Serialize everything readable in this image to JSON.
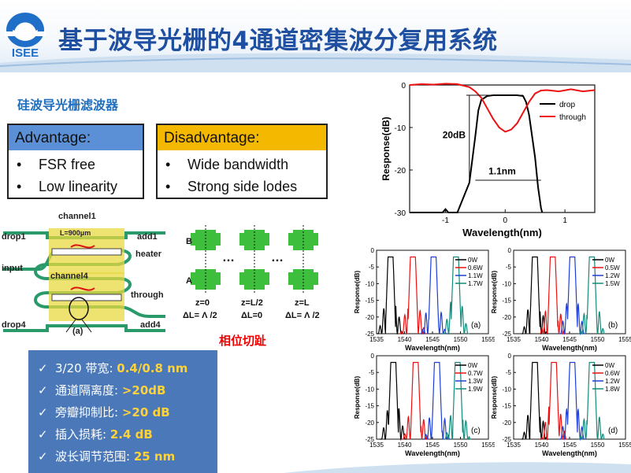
{
  "page": {
    "title": "基于波导光栅的4通道密集波分复用系统",
    "logo_text": "ISEE",
    "subtitle": "硅波导光栅滤波器"
  },
  "advantage": {
    "header": "Advantage:",
    "items": [
      "FSR free",
      "Low linearity"
    ]
  },
  "disadvantage": {
    "header": "Disadvantage:",
    "items": [
      "Wide bandwidth",
      "Strong side lodes"
    ]
  },
  "diagram": {
    "channel1": "channel1",
    "channel4": "channel4",
    "length": "L=900μm",
    "drop1": "drop1",
    "add1": "add1",
    "heater": "heater",
    "input": "input",
    "through": "through",
    "drop4": "drop4",
    "add4": "add4",
    "panel": "(a)"
  },
  "phase": {
    "a_label": "A",
    "b_label": "B",
    "dots1": "…",
    "dots2": "…",
    "z_labels": [
      "z=0",
      "z=L/2",
      "z=L"
    ],
    "dl_labels": [
      "ΔL= Λ /2",
      "ΔL=0",
      "ΔL= Λ /2"
    ],
    "caption": "相位切趾"
  },
  "summary": {
    "check": "✓",
    "rows": [
      {
        "label": "3/20 带宽: ",
        "value": "0.4/0.8 nm"
      },
      {
        "label": "通道隔离度: ",
        "value": ">20dB"
      },
      {
        "label": "旁瓣抑制比: ",
        "value": ">20 dB"
      },
      {
        "label": "插入损耗: ",
        "value": "2.4 dB"
      },
      {
        "label": "波长调节范围: ",
        "value": "25 nm"
      }
    ]
  },
  "colors": {
    "title": "#1f4fa0",
    "adv_header": "#5b8fd6",
    "dis_header": "#f5b800",
    "summary_bg": "#4a78b8",
    "summary_value": "#ffd23a",
    "series": [
      "#000000",
      "#ee1111",
      "#1f3fd6",
      "#138a7a"
    ]
  },
  "chart_data": [
    {
      "type": "line",
      "xlabel": "Wavelength(nm)",
      "ylabel": "Response(dB)",
      "xlim": [
        -1.6,
        1.5
      ],
      "ylim": [
        -30,
        0
      ],
      "xticks": [
        -1,
        0,
        1
      ],
      "yticks": [
        0,
        -10,
        -20,
        -30
      ],
      "legend_position": "top-right",
      "annotations": [
        "20dB",
        "1.1nm"
      ],
      "series": [
        {
          "name": "drop",
          "color": "#000000",
          "x": [
            -1.6,
            -1.2,
            -1.05,
            -1.0,
            -0.95,
            -0.9,
            -0.85,
            -0.8,
            -0.6,
            -0.5,
            -0.45,
            -0.4,
            -0.3,
            -0.2,
            0,
            0.2,
            0.3,
            0.35,
            0.4,
            0.5,
            0.55,
            0.6,
            0.62
          ],
          "y": [
            -30,
            -30,
            -30,
            -29.2,
            -30,
            -30,
            -30,
            -30,
            -23,
            -12,
            -6,
            -3.5,
            -2.6,
            -2.4,
            -2.4,
            -2.4,
            -2.6,
            -4,
            -7,
            -17,
            -24,
            -29,
            -30
          ]
        },
        {
          "name": "through",
          "color": "#ee1111",
          "x": [
            -1.6,
            -1.4,
            -1.2,
            -1.0,
            -0.8,
            -0.6,
            -0.5,
            -0.4,
            -0.3,
            -0.2,
            -0.1,
            0,
            0.1,
            0.2,
            0.3,
            0.4,
            0.5,
            0.6,
            0.7,
            0.9,
            1.1,
            1.3,
            1.5
          ],
          "y": [
            0,
            0.2,
            0.1,
            0.3,
            0.2,
            -0.5,
            -1.5,
            -3,
            -5.5,
            -8,
            -10,
            -11,
            -10.5,
            -9,
            -6.5,
            -4,
            -2,
            -1.3,
            -1.2,
            -1.5,
            -1.0,
            -1.5,
            -1.2
          ]
        }
      ]
    },
    {
      "type": "line",
      "panel": "(a)",
      "xlabel": "Wavelength(nm)",
      "ylabel": "Response(dB)",
      "xlim": [
        1535,
        1555
      ],
      "ylim": [
        -25,
        0
      ],
      "xticks": [
        1535,
        1540,
        1545,
        1550,
        1555
      ],
      "yticks": [
        0,
        -5,
        -10,
        -15,
        -20,
        -25
      ],
      "legend_position": "top-right",
      "series": [
        {
          "name": "0W",
          "color": "#000000",
          "center": 1537.5
        },
        {
          "name": "0.6W",
          "color": "#ee1111",
          "center": 1541.5
        },
        {
          "name": "1.1W",
          "color": "#1f3fd6",
          "center": 1545.2
        },
        {
          "name": "1.7W",
          "color": "#138a7a",
          "center": 1549.2
        }
      ]
    },
    {
      "type": "line",
      "panel": "(b)",
      "xlabel": "Wavelength(nm)",
      "ylabel": "Response(dB)",
      "xlim": [
        1535,
        1555
      ],
      "ylim": [
        -25,
        0
      ],
      "xticks": [
        1535,
        1540,
        1545,
        1550,
        1555
      ],
      "yticks": [
        0,
        -5,
        -10,
        -15,
        -20,
        -25
      ],
      "legend_position": "top-right",
      "series": [
        {
          "name": "0W",
          "color": "#000000",
          "center": 1538.8
        },
        {
          "name": "0.5W",
          "color": "#ee1111",
          "center": 1542.0
        },
        {
          "name": "1.2W",
          "color": "#1f3fd6",
          "center": 1545.5
        },
        {
          "name": "1.5W",
          "color": "#138a7a",
          "center": 1549.0
        }
      ]
    },
    {
      "type": "line",
      "panel": "(c)",
      "xlabel": "Wavelength(nm)",
      "ylabel": "Response(dB)",
      "xlim": [
        1535,
        1555
      ],
      "ylim": [
        -25,
        0
      ],
      "xticks": [
        1535,
        1540,
        1545,
        1550,
        1555
      ],
      "yticks": [
        0,
        -5,
        -10,
        -15,
        -20,
        -25
      ],
      "legend_position": "top-right",
      "series": [
        {
          "name": "0W",
          "color": "#000000",
          "center": 1538.0
        },
        {
          "name": "0.7W",
          "color": "#ee1111",
          "center": 1542.0
        },
        {
          "name": "1.3W",
          "color": "#1f3fd6",
          "center": 1545.8
        },
        {
          "name": "1.9W",
          "color": "#138a7a",
          "center": 1549.5
        }
      ]
    },
    {
      "type": "line",
      "panel": "(d)",
      "xlabel": "Wavelength(nm)",
      "ylabel": "Response(dB)",
      "xlim": [
        1535,
        1555
      ],
      "ylim": [
        -25,
        0
      ],
      "xticks": [
        1535,
        1540,
        1545,
        1550,
        1555
      ],
      "yticks": [
        0,
        -5,
        -10,
        -15,
        -20,
        -25
      ],
      "legend_position": "top-right",
      "series": [
        {
          "name": "0W",
          "color": "#000000",
          "center": 1538.8
        },
        {
          "name": "0.6W",
          "color": "#ee1111",
          "center": 1542.2
        },
        {
          "name": "1.2W",
          "color": "#1f3fd6",
          "center": 1545.5
        },
        {
          "name": "1.8W",
          "color": "#138a7a",
          "center": 1549.0
        }
      ]
    }
  ]
}
